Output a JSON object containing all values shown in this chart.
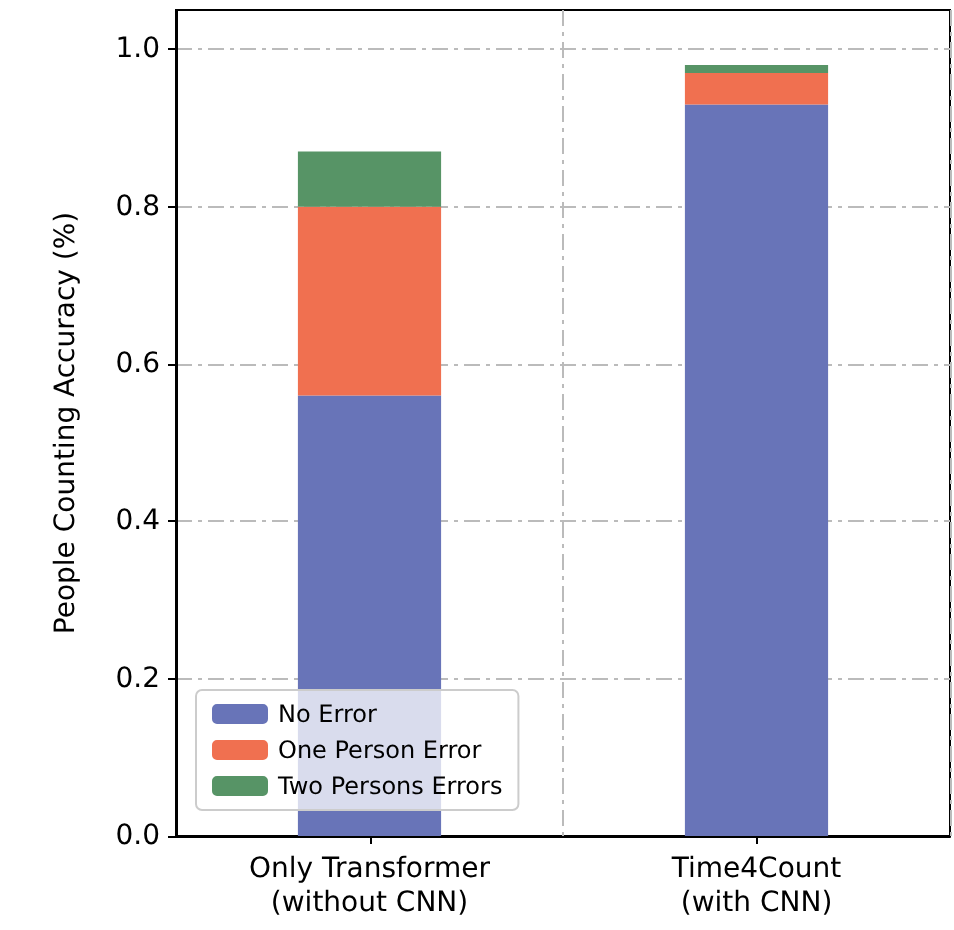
{
  "chart_data": {
    "type": "bar",
    "stacked": true,
    "ylabel": "People Counting Accuracy (%)",
    "categories": [
      "Only Transformer\n(without CNN)",
      "Time4Count\n(with CNN)"
    ],
    "series": [
      {
        "name": "No Error",
        "color": "#6874b8",
        "values": [
          0.56,
          0.93
        ]
      },
      {
        "name": "One Person Error",
        "color": "#f07050",
        "values": [
          0.24,
          0.04
        ]
      },
      {
        "name": "Two Persons Errors",
        "color": "#579466",
        "values": [
          0.07,
          0.01
        ]
      }
    ],
    "ylim": [
      0,
      1.05
    ],
    "yticks": [
      {
        "value": 0,
        "label": "0.0"
      },
      {
        "value": 0.2,
        "label": "0.2"
      },
      {
        "value": 0.4,
        "label": "0.4"
      },
      {
        "value": 0.6,
        "label": "0.6"
      },
      {
        "value": 0.8,
        "label": "0.8"
      },
      {
        "value": 1,
        "label": "1.0"
      }
    ],
    "grid": true,
    "legend": "bottom left"
  }
}
